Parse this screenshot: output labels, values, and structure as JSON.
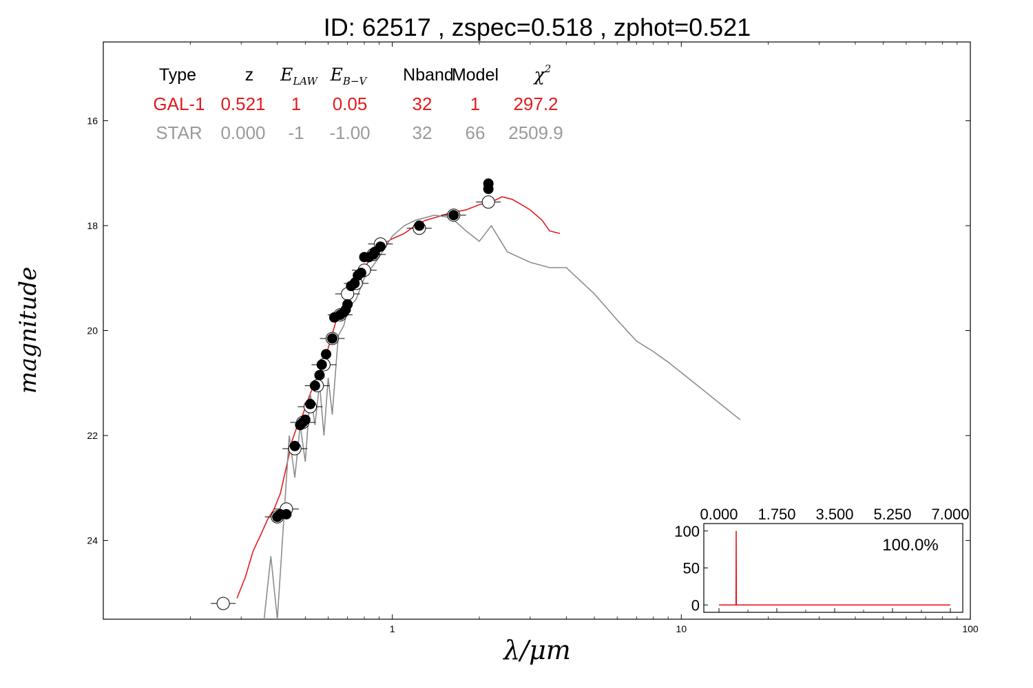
{
  "chart_data": [
    {
      "type": "scatter",
      "title": "ID:  62517 , zspec=0.518 , zphot=0.521",
      "xlabel": "λ/μm",
      "ylabel": "magnitude",
      "xscale": "log",
      "xlim": [
        0.1,
        100
      ],
      "ylim": [
        25.5,
        14.5
      ],
      "y_inverted": true,
      "x_ticks": [
        "1",
        "10",
        "100"
      ],
      "x_tick_values": [
        1,
        10,
        100
      ],
      "y_ticks": [
        "16",
        "18",
        "20",
        "22",
        "24"
      ],
      "y_tick_values": [
        16,
        18,
        20,
        22,
        24
      ],
      "colors": {
        "galaxy": "#e31a1c",
        "star": "#8c8c8c",
        "points": "#000000"
      },
      "table": {
        "headers": [
          "Type",
          "z",
          "E",
          "E",
          "Nband",
          "Model",
          "χ"
        ],
        "header_subscripts": [
          "",
          "",
          "LAW",
          "B−V",
          "",
          "",
          ""
        ],
        "header_superscripts": [
          "",
          "",
          "",
          "",
          "",
          "",
          "2"
        ],
        "rows": [
          {
            "color": "#e31a1c",
            "cells": [
              "GAL-1",
              "0.521",
              "1",
              "0.05",
              "32",
              "1",
              "297.2"
            ]
          },
          {
            "color": "#9a9a9a",
            "cells": [
              "STAR",
              "0.000",
              "-1",
              "-1.00",
              "32",
              "66",
              "2509.9"
            ]
          }
        ]
      },
      "series": [
        {
          "name": "GAL-1",
          "kind": "line",
          "color": "#e31a1c",
          "x": [
            0.29,
            0.31,
            0.33,
            0.35,
            0.37,
            0.39,
            0.41,
            0.43,
            0.45,
            0.47,
            0.49,
            0.52,
            0.55,
            0.58,
            0.61,
            0.64,
            0.67,
            0.7,
            0.75,
            0.8,
            0.85,
            0.9,
            1.0,
            1.1,
            1.2,
            1.3,
            1.4,
            1.5,
            1.6,
            1.8,
            2.0,
            2.2,
            2.4,
            2.6,
            2.8,
            3.0,
            3.3,
            3.5,
            3.8
          ],
          "y": [
            25.1,
            24.7,
            24.2,
            23.9,
            23.6,
            23.4,
            23.1,
            22.6,
            22.1,
            21.8,
            21.6,
            21.2,
            20.9,
            20.6,
            20.2,
            19.8,
            19.6,
            19.3,
            19.0,
            18.8,
            18.6,
            18.4,
            18.25,
            18.15,
            18.0,
            17.9,
            17.85,
            17.8,
            17.75,
            17.7,
            17.6,
            17.55,
            17.45,
            17.5,
            17.6,
            17.7,
            17.9,
            18.1,
            18.15
          ]
        },
        {
          "name": "STAR",
          "kind": "line",
          "color": "#8c8c8c",
          "x": [
            0.36,
            0.38,
            0.4,
            0.42,
            0.44,
            0.46,
            0.48,
            0.5,
            0.52,
            0.54,
            0.56,
            0.58,
            0.6,
            0.62,
            0.65,
            0.68,
            0.7,
            0.75,
            0.8,
            0.9,
            1.0,
            1.1,
            1.2,
            1.4,
            1.6,
            1.8,
            2.0,
            2.2,
            2.5,
            3.0,
            3.5,
            4.0,
            5.0,
            6.0,
            7.0,
            8.0,
            9.0,
            10.0,
            16.0
          ],
          "y": [
            25.5,
            24.3,
            25.5,
            23.7,
            22.0,
            22.8,
            21.8,
            22.5,
            21.2,
            21.8,
            21.0,
            22.0,
            20.9,
            21.6,
            20.1,
            19.9,
            19.6,
            19.4,
            19.0,
            18.6,
            18.2,
            18.0,
            17.9,
            17.8,
            17.85,
            18.1,
            18.3,
            18.0,
            18.5,
            18.7,
            18.8,
            18.8,
            19.3,
            19.8,
            20.2,
            20.4,
            20.6,
            20.8,
            21.7
          ]
        },
        {
          "name": "observed",
          "kind": "points",
          "color": "#000000",
          "x": [
            0.4,
            0.41,
            0.43,
            0.46,
            0.48,
            0.49,
            0.5,
            0.52,
            0.54,
            0.56,
            0.57,
            0.59,
            0.62,
            0.63,
            0.66,
            0.68,
            0.69,
            0.7,
            0.72,
            0.74,
            0.76,
            0.78,
            0.8,
            0.83,
            0.86,
            0.87,
            0.91,
            1.24,
            1.63,
            2.15,
            2.15
          ],
          "y": [
            23.55,
            23.5,
            23.5,
            22.2,
            21.8,
            21.75,
            21.7,
            21.4,
            21.05,
            20.85,
            20.65,
            20.45,
            20.15,
            19.75,
            19.7,
            19.65,
            19.6,
            19.5,
            19.15,
            19.1,
            18.95,
            18.9,
            18.6,
            18.6,
            18.55,
            18.5,
            18.4,
            18.0,
            17.8,
            17.2,
            17.3
          ]
        },
        {
          "name": "model",
          "kind": "open-points",
          "color": "#000000",
          "x": [
            0.26,
            0.4,
            0.43,
            0.46,
            0.49,
            0.52,
            0.55,
            0.58,
            0.62,
            0.66,
            0.7,
            0.75,
            0.8,
            0.86,
            0.91,
            1.24,
            1.63,
            2.15
          ],
          "y": [
            25.2,
            23.55,
            23.4,
            22.25,
            21.75,
            21.45,
            21.05,
            20.65,
            20.15,
            19.7,
            19.3,
            19.1,
            18.85,
            18.55,
            18.35,
            18.05,
            17.8,
            17.55
          ]
        }
      ]
    },
    {
      "type": "line",
      "inset": true,
      "annotation": "100.0%",
      "xlim": [
        0,
        7
      ],
      "ylim": [
        -10,
        110
      ],
      "x_ticks": [
        "0.000",
        "1.750",
        "3.500",
        "5.250",
        "7.000"
      ],
      "x_tick_values": [
        0,
        1.75,
        3.5,
        5.25,
        7
      ],
      "y_ticks": [
        "100",
        "50",
        "0"
      ],
      "y_tick_values": [
        100,
        50,
        0
      ],
      "color": "#e31a1c",
      "x": [
        0.0,
        0.5,
        0.515,
        0.521,
        0.527,
        0.54,
        7.0
      ],
      "y": [
        0,
        0,
        0,
        100,
        0,
        0,
        0
      ]
    }
  ]
}
